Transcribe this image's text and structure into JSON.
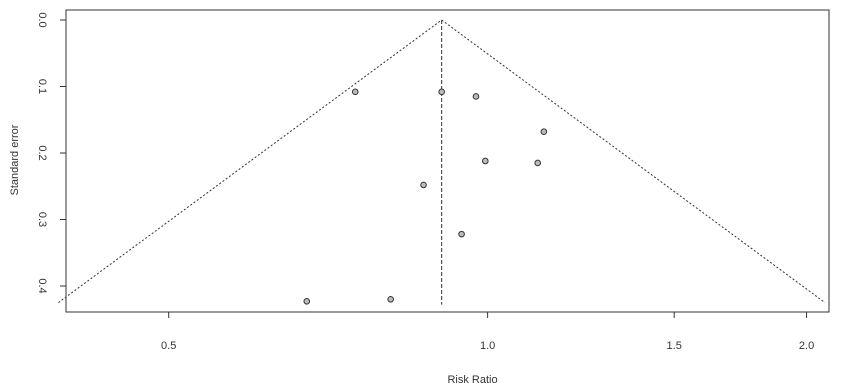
{
  "chart_data": {
    "type": "scatter",
    "title": "",
    "xlabel": "Risk Ratio",
    "ylabel": "Standard error",
    "xscale": "log",
    "xlim": [
      0.4,
      2.1
    ],
    "ylim": [
      0.44,
      0.0
    ],
    "x_ticks": [
      {
        "value": 0.5,
        "label": "0.5"
      },
      {
        "value": 1.0,
        "label": "1.0"
      },
      {
        "value": 1.5,
        "label": "1.5"
      },
      {
        "value": 2.0,
        "label": "2.0"
      }
    ],
    "y_ticks": [
      {
        "value": 0.0,
        "label": "0.0"
      },
      {
        "value": 0.1,
        "label": "0.1"
      },
      {
        "value": 0.2,
        "label": "0.2"
      },
      {
        "value": 0.3,
        "label": "0.3"
      },
      {
        "value": 0.4,
        "label": "0.4"
      }
    ],
    "pooled_estimate": 0.905,
    "funnel_max_se": 0.425,
    "points": [
      {
        "x": 0.75,
        "y": 0.108
      },
      {
        "x": 0.905,
        "y": 0.108
      },
      {
        "x": 0.975,
        "y": 0.115
      },
      {
        "x": 1.13,
        "y": 0.168
      },
      {
        "x": 0.995,
        "y": 0.212
      },
      {
        "x": 1.115,
        "y": 0.215
      },
      {
        "x": 0.87,
        "y": 0.248
      },
      {
        "x": 0.945,
        "y": 0.322
      },
      {
        "x": 0.81,
        "y": 0.42
      },
      {
        "x": 0.675,
        "y": 0.423
      }
    ],
    "grid": false,
    "legend": "none"
  }
}
